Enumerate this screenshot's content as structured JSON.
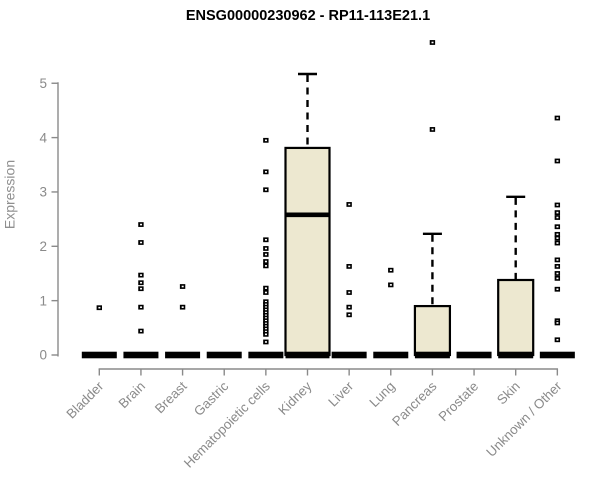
{
  "chart_data": {
    "type": "boxplot",
    "title": "ENSG00000230962 - RP11-113E21.1",
    "ylabel": "Expression",
    "xlabel": "",
    "ylim": [
      0,
      5
    ],
    "yticks": [
      0,
      1,
      2,
      3,
      4,
      5
    ],
    "grid": "off",
    "legend": "none",
    "categories": [
      "Bladder",
      "Brain",
      "Breast",
      "Gastric",
      "Hematopoietic cells",
      "Kidney",
      "Liver",
      "Lung",
      "Pancreas",
      "Prostate",
      "Skin",
      "Unknown / Other"
    ],
    "series": [
      {
        "category": "Bladder",
        "q1": 0,
        "median": 0,
        "q3": 0,
        "whisker_low": 0,
        "whisker_high": 0,
        "outliers": [
          0.87
        ]
      },
      {
        "category": "Brain",
        "q1": 0,
        "median": 0,
        "q3": 0,
        "whisker_low": 0,
        "whisker_high": 0,
        "outliers": [
          2.4,
          2.07,
          1.47,
          1.33,
          1.22,
          0.88,
          0.44
        ]
      },
      {
        "category": "Breast",
        "q1": 0,
        "median": 0,
        "q3": 0,
        "whisker_low": 0,
        "whisker_high": 0,
        "outliers": [
          1.26,
          0.88
        ]
      },
      {
        "category": "Gastric",
        "q1": 0,
        "median": 0,
        "q3": 0,
        "whisker_low": 0,
        "whisker_high": 0,
        "outliers": []
      },
      {
        "category": "Hematopoietic cells",
        "q1": 0,
        "median": 0,
        "q3": 0,
        "whisker_low": 0,
        "whisker_high": 0,
        "outliers": [
          3.95,
          3.37,
          3.04,
          2.12,
          1.96,
          1.85,
          1.72,
          1.64,
          1.23,
          1.15,
          0.98,
          0.93,
          0.88,
          0.83,
          0.78,
          0.73,
          0.68,
          0.63,
          0.58,
          0.53,
          0.48,
          0.43,
          0.38,
          0.24
        ]
      },
      {
        "category": "Kidney",
        "q1": 0,
        "median": 2.58,
        "q3": 3.81,
        "whisker_low": 0,
        "whisker_high": 5.17,
        "outliers": [],
        "wide": true
      },
      {
        "category": "Liver",
        "q1": 0,
        "median": 0,
        "q3": 0,
        "whisker_low": 0,
        "whisker_high": 0,
        "outliers": [
          2.77,
          1.63,
          1.15,
          0.88,
          0.74
        ]
      },
      {
        "category": "Lung",
        "q1": 0,
        "median": 0,
        "q3": 0,
        "whisker_low": 0,
        "whisker_high": 0,
        "outliers": [
          1.56,
          1.29
        ]
      },
      {
        "category": "Pancreas",
        "q1": 0,
        "median": 0,
        "q3": 0.9,
        "whisker_low": 0,
        "whisker_high": 2.23,
        "outliers": [
          5.75,
          4.15
        ]
      },
      {
        "category": "Prostate",
        "q1": 0,
        "median": 0,
        "q3": 0,
        "whisker_low": 0,
        "whisker_high": 0,
        "outliers": []
      },
      {
        "category": "Skin",
        "q1": 0,
        "median": 0,
        "q3": 1.38,
        "whisker_low": 0,
        "whisker_high": 2.91,
        "outliers": []
      },
      {
        "category": "Unknown / Other",
        "q1": 0,
        "median": 0,
        "q3": 0,
        "whisker_low": 0,
        "whisker_high": 0,
        "outliers": [
          4.36,
          3.57,
          2.76,
          2.62,
          2.53,
          2.36,
          2.22,
          2.15,
          2.06,
          1.75,
          1.63,
          1.5,
          1.41,
          1.21,
          0.63,
          0.59,
          0.28
        ]
      }
    ],
    "colors": {
      "box_fill": "#ede8d0",
      "box_border": "#000000",
      "median": "#000000",
      "whisker": "#000000",
      "outlier": "#000000",
      "axis": "#8a8a8a",
      "tick_label": "#8a8a8a",
      "title": "#000000"
    }
  }
}
